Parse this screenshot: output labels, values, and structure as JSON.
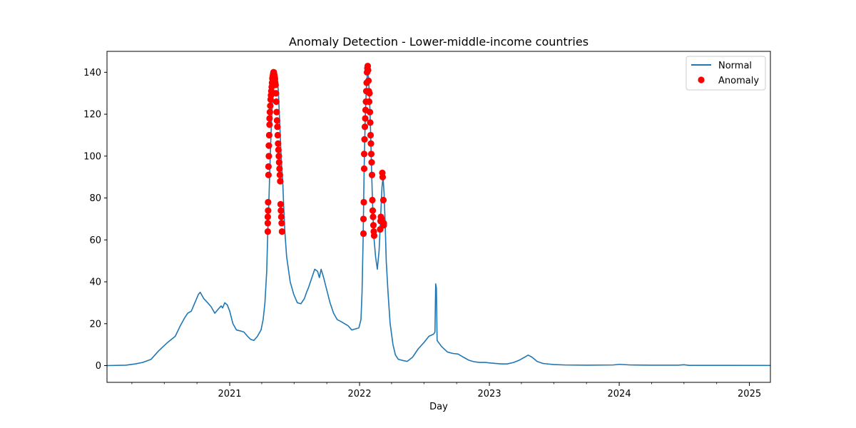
{
  "chart_data": {
    "type": "line",
    "title": "Anomaly Detection - Lower-middle-income countries",
    "xlabel": "Day",
    "ylabel": "",
    "x_axis_type": "date",
    "xlim": [
      "2020-01-22",
      "2025-03-01"
    ],
    "ylim": [
      -8,
      150
    ],
    "x_ticks": [
      "2021",
      "2022",
      "2023",
      "2024",
      "2025"
    ],
    "y_ticks": [
      0,
      20,
      40,
      60,
      80,
      100,
      120,
      140
    ],
    "grid": false,
    "legend_position": "upper right",
    "colors": {
      "normal": "#1f77b4",
      "anomaly": "#ff0000"
    },
    "series": [
      {
        "name": "Normal",
        "kind": "line",
        "points": [
          [
            "2020-01-22",
            0
          ],
          [
            "2020-03-15",
            0.2
          ],
          [
            "2020-04-10",
            0.8
          ],
          [
            "2020-05-01",
            1.5
          ],
          [
            "2020-05-25",
            3
          ],
          [
            "2020-06-15",
            7
          ],
          [
            "2020-07-10",
            11
          ],
          [
            "2020-08-01",
            14
          ],
          [
            "2020-08-15",
            19
          ],
          [
            "2020-08-28",
            23
          ],
          [
            "2020-09-05",
            25
          ],
          [
            "2020-09-15",
            26
          ],
          [
            "2020-09-25",
            30
          ],
          [
            "2020-10-05",
            34
          ],
          [
            "2020-10-10",
            35
          ],
          [
            "2020-10-20",
            32
          ],
          [
            "2020-10-31",
            30
          ],
          [
            "2020-11-10",
            28
          ],
          [
            "2020-11-20",
            25
          ],
          [
            "2020-11-30",
            27
          ],
          [
            "2020-12-08",
            28.5
          ],
          [
            "2020-12-12",
            27.5
          ],
          [
            "2020-12-18",
            30
          ],
          [
            "2020-12-25",
            29
          ],
          [
            "2021-01-01",
            26
          ],
          [
            "2021-01-10",
            20
          ],
          [
            "2021-01-20",
            17
          ],
          [
            "2021-02-01",
            16.5
          ],
          [
            "2021-02-10",
            16
          ],
          [
            "2021-02-20",
            14
          ],
          [
            "2021-03-01",
            12.5
          ],
          [
            "2021-03-10",
            12
          ],
          [
            "2021-03-20",
            14
          ],
          [
            "2021-03-30",
            17
          ],
          [
            "2021-04-05",
            22
          ],
          [
            "2021-04-10",
            30
          ],
          [
            "2021-04-15",
            45
          ],
          [
            "2021-04-18",
            64
          ],
          [
            "2021-04-21",
            78
          ],
          [
            "2021-04-24",
            95
          ],
          [
            "2021-04-27",
            110
          ],
          [
            "2021-04-30",
            122
          ],
          [
            "2021-05-03",
            130
          ],
          [
            "2021-05-06",
            135
          ],
          [
            "2021-05-09",
            139
          ],
          [
            "2021-05-12",
            140
          ],
          [
            "2021-05-15",
            137
          ],
          [
            "2021-05-18",
            130
          ],
          [
            "2021-05-21",
            118
          ],
          [
            "2021-05-24",
            106
          ],
          [
            "2021-05-27",
            95
          ],
          [
            "2021-05-30",
            88
          ],
          [
            "2021-06-02",
            75
          ],
          [
            "2021-06-05",
            64
          ],
          [
            "2021-06-10",
            52
          ],
          [
            "2021-06-20",
            40
          ],
          [
            "2021-06-30",
            34
          ],
          [
            "2021-07-10",
            30
          ],
          [
            "2021-07-20",
            29.5
          ],
          [
            "2021-07-30",
            32
          ],
          [
            "2021-08-05",
            35
          ],
          [
            "2021-08-10",
            37
          ],
          [
            "2021-08-20",
            42
          ],
          [
            "2021-08-28",
            46
          ],
          [
            "2021-09-05",
            45
          ],
          [
            "2021-09-10",
            42
          ],
          [
            "2021-09-15",
            46
          ],
          [
            "2021-09-22",
            42
          ],
          [
            "2021-10-01",
            36
          ],
          [
            "2021-10-10",
            30
          ],
          [
            "2021-10-20",
            25
          ],
          [
            "2021-10-30",
            22
          ],
          [
            "2021-11-10",
            21
          ],
          [
            "2021-11-20",
            20
          ],
          [
            "2021-11-30",
            19
          ],
          [
            "2021-12-10",
            17
          ],
          [
            "2021-12-20",
            17.5
          ],
          [
            "2021-12-30",
            18
          ],
          [
            "2022-01-05",
            22
          ],
          [
            "2022-01-08",
            35
          ],
          [
            "2022-01-11",
            60
          ],
          [
            "2022-01-14",
            95
          ],
          [
            "2022-01-17",
            118
          ],
          [
            "2022-01-20",
            132
          ],
          [
            "2022-01-23",
            140
          ],
          [
            "2022-01-26",
            138
          ],
          [
            "2022-01-29",
            128
          ],
          [
            "2022-02-01",
            112
          ],
          [
            "2022-02-04",
            92
          ],
          [
            "2022-02-07",
            75
          ],
          [
            "2022-02-10",
            62
          ],
          [
            "2022-02-15",
            52
          ],
          [
            "2022-02-20",
            46
          ],
          [
            "2022-02-25",
            55
          ],
          [
            "2022-03-01",
            70
          ],
          [
            "2022-03-05",
            85
          ],
          [
            "2022-03-08",
            90
          ],
          [
            "2022-03-11",
            82
          ],
          [
            "2022-03-14",
            68
          ],
          [
            "2022-03-17",
            50
          ],
          [
            "2022-03-22",
            35
          ],
          [
            "2022-03-28",
            20
          ],
          [
            "2022-04-05",
            10
          ],
          [
            "2022-04-12",
            5
          ],
          [
            "2022-04-20",
            3
          ],
          [
            "2022-05-01",
            2.5
          ],
          [
            "2022-05-15",
            2
          ],
          [
            "2022-05-30",
            4
          ],
          [
            "2022-06-15",
            8
          ],
          [
            "2022-07-01",
            11
          ],
          [
            "2022-07-15",
            14
          ],
          [
            "2022-07-28",
            15
          ],
          [
            "2022-08-01",
            16
          ],
          [
            "2022-08-03",
            39
          ],
          [
            "2022-08-05",
            37
          ],
          [
            "2022-08-07",
            12
          ],
          [
            "2022-08-20",
            9
          ],
          [
            "2022-09-05",
            6.5
          ],
          [
            "2022-09-20",
            5.8
          ],
          [
            "2022-10-05",
            5.5
          ],
          [
            "2022-10-20",
            4
          ],
          [
            "2022-11-05",
            2.5
          ],
          [
            "2022-11-20",
            1.8
          ],
          [
            "2022-12-05",
            1.5
          ],
          [
            "2022-12-20",
            1.5
          ],
          [
            "2023-01-05",
            1.2
          ],
          [
            "2023-01-20",
            1
          ],
          [
            "2023-02-05",
            0.8
          ],
          [
            "2023-02-20",
            0.8
          ],
          [
            "2023-03-10",
            1.5
          ],
          [
            "2023-03-25",
            2.5
          ],
          [
            "2023-04-10",
            4
          ],
          [
            "2023-04-20",
            5
          ],
          [
            "2023-05-01",
            4
          ],
          [
            "2023-05-15",
            2
          ],
          [
            "2023-06-01",
            1
          ],
          [
            "2023-07-01",
            0.5
          ],
          [
            "2023-08-01",
            0.3
          ],
          [
            "2023-10-01",
            0.2
          ],
          [
            "2023-12-15",
            0.3
          ],
          [
            "2024-01-01",
            0.6
          ],
          [
            "2024-02-01",
            0.3
          ],
          [
            "2024-04-01",
            0.2
          ],
          [
            "2024-06-15",
            0.2
          ],
          [
            "2024-07-01",
            0.4
          ],
          [
            "2024-07-15",
            0.1
          ],
          [
            "2024-10-01",
            0.1
          ],
          [
            "2025-03-01",
            0.05
          ]
        ]
      },
      {
        "name": "Anomaly",
        "kind": "scatter",
        "points": [
          [
            "2021-04-18",
            64
          ],
          [
            "2021-04-18",
            68
          ],
          [
            "2021-04-18",
            71
          ],
          [
            "2021-04-19",
            74
          ],
          [
            "2021-04-19",
            78
          ],
          [
            "2021-04-20",
            91
          ],
          [
            "2021-04-20",
            95
          ],
          [
            "2021-04-21",
            100
          ],
          [
            "2021-04-21",
            105
          ],
          [
            "2021-04-22",
            110
          ],
          [
            "2021-04-23",
            115
          ],
          [
            "2021-04-23",
            118
          ],
          [
            "2021-04-24",
            121
          ],
          [
            "2021-04-25",
            124
          ],
          [
            "2021-04-26",
            127
          ],
          [
            "2021-04-27",
            129
          ],
          [
            "2021-04-28",
            131
          ],
          [
            "2021-04-29",
            133
          ],
          [
            "2021-04-30",
            135
          ],
          [
            "2021-05-01",
            137
          ],
          [
            "2021-05-02",
            138
          ],
          [
            "2021-05-03",
            139
          ],
          [
            "2021-05-04",
            140
          ],
          [
            "2021-05-05",
            140
          ],
          [
            "2021-05-06",
            139
          ],
          [
            "2021-05-07",
            138
          ],
          [
            "2021-05-08",
            137
          ],
          [
            "2021-05-09",
            135
          ],
          [
            "2021-05-10",
            134
          ],
          [
            "2021-05-11",
            130
          ],
          [
            "2021-05-12",
            126
          ],
          [
            "2021-05-13",
            121
          ],
          [
            "2021-05-14",
            117
          ],
          [
            "2021-05-15",
            114
          ],
          [
            "2021-05-16",
            110
          ],
          [
            "2021-05-17",
            106
          ],
          [
            "2021-05-18",
            103
          ],
          [
            "2021-05-19",
            100
          ],
          [
            "2021-05-20",
            97
          ],
          [
            "2021-05-21",
            94
          ],
          [
            "2021-05-22",
            91
          ],
          [
            "2021-05-23",
            88
          ],
          [
            "2021-05-24",
            77
          ],
          [
            "2021-05-25",
            74
          ],
          [
            "2021-05-26",
            71
          ],
          [
            "2021-05-27",
            68
          ],
          [
            "2021-05-28",
            64
          ],
          [
            "2022-01-12",
            63
          ],
          [
            "2022-01-12",
            70
          ],
          [
            "2022-01-13",
            78
          ],
          [
            "2022-01-14",
            94
          ],
          [
            "2022-01-14",
            101
          ],
          [
            "2022-01-15",
            108
          ],
          [
            "2022-01-16",
            114
          ],
          [
            "2022-01-17",
            118
          ],
          [
            "2022-01-18",
            122
          ],
          [
            "2022-01-19",
            126
          ],
          [
            "2022-01-20",
            131
          ],
          [
            "2022-01-21",
            135
          ],
          [
            "2022-01-22",
            140
          ],
          [
            "2022-01-23",
            142
          ],
          [
            "2022-01-24",
            143
          ],
          [
            "2022-01-25",
            141
          ],
          [
            "2022-01-26",
            136
          ],
          [
            "2022-01-27",
            131
          ],
          [
            "2022-01-28",
            126
          ],
          [
            "2022-01-29",
            130
          ],
          [
            "2022-01-30",
            121
          ],
          [
            "2022-01-31",
            116
          ],
          [
            "2022-02-01",
            110
          ],
          [
            "2022-02-02",
            106
          ],
          [
            "2022-02-03",
            101
          ],
          [
            "2022-02-04",
            97
          ],
          [
            "2022-02-05",
            91
          ],
          [
            "2022-02-06",
            79
          ],
          [
            "2022-02-07",
            74
          ],
          [
            "2022-02-08",
            71
          ],
          [
            "2022-02-09",
            67
          ],
          [
            "2022-02-10",
            64
          ],
          [
            "2022-02-11",
            62
          ],
          [
            "2022-02-28",
            65
          ],
          [
            "2022-03-01",
            69
          ],
          [
            "2022-03-02",
            71
          ],
          [
            "2022-03-04",
            70
          ],
          [
            "2022-03-06",
            92
          ],
          [
            "2022-03-07",
            90
          ],
          [
            "2022-03-09",
            79
          ],
          [
            "2022-03-10",
            68
          ],
          [
            "2022-03-10",
            67
          ]
        ]
      }
    ]
  }
}
